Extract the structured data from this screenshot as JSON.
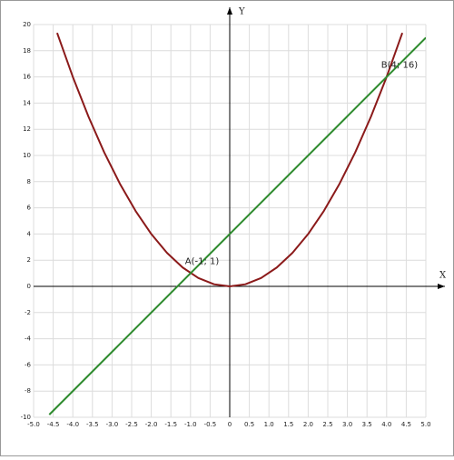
{
  "chart_data": {
    "type": "line",
    "x_label": "X",
    "y_label": "Y",
    "xlim": [
      -5,
      5
    ],
    "xticks": [
      {
        "value": -5,
        "label": "-5.0"
      },
      -4.5,
      {
        "value": -4,
        "label": "-4.0"
      },
      -3.5,
      {
        "value": -3,
        "label": "-3.0"
      },
      -2.5,
      {
        "value": -2,
        "label": "-2.0"
      },
      -1.5,
      {
        "value": -1,
        "label": "-1.0"
      },
      -0.5,
      0,
      0.5,
      {
        "value": 1,
        "label": "1.0"
      },
      1.5,
      {
        "value": 2,
        "label": "2.0"
      },
      2.5,
      {
        "value": 3,
        "label": "3.0"
      },
      3.5,
      {
        "value": 4,
        "label": "4.0"
      },
      4.5,
      {
        "value": 5,
        "label": "5.0"
      }
    ],
    "ylim": [
      -10,
      20
    ],
    "yticks": [
      -10,
      -8,
      -6,
      -4,
      -2,
      0,
      2,
      4,
      6,
      8,
      10,
      12,
      14,
      16,
      18,
      20
    ],
    "grid": true,
    "series": [
      {
        "color": "#8b1a1a",
        "x": [
          -4.4,
          -4.0,
          -3.6,
          -3.2,
          -2.8,
          -2.4,
          -2.0,
          -1.6,
          -1.2,
          -0.8,
          -0.4,
          0,
          0.4,
          0.8,
          1.2,
          1.6,
          2.0,
          2.4,
          2.8,
          3.2,
          3.6,
          4.0,
          4.4
        ],
        "values": [
          19.36,
          16,
          12.96,
          10.24,
          7.84,
          5.76,
          4,
          2.56,
          1.44,
          0.64,
          0.16,
          0,
          0.16,
          0.64,
          1.44,
          2.56,
          4,
          5.76,
          7.84,
          10.24,
          12.96,
          16,
          19.36
        ]
      },
      {
        "color": "#2e8b2e",
        "x": [
          -4.6,
          5
        ],
        "values": [
          -9.8,
          19
        ]
      }
    ],
    "annotations": [
      {
        "text": "A(-1; 1)",
        "x": -1,
        "y": 1
      },
      {
        "text": "B(4; 16)",
        "x": 4,
        "y": 16
      }
    ]
  }
}
